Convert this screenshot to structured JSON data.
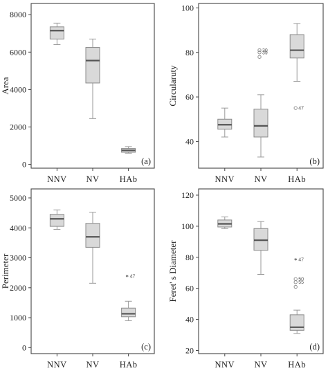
{
  "chart_data": [
    {
      "type": "box",
      "panel_label": "(a)",
      "ylabel": "Area",
      "categories": [
        "NNV",
        "NV",
        "HAb"
      ],
      "yticks": [
        "0",
        "2000",
        "4000",
        "6000",
        "8000"
      ],
      "ylim": [
        -200,
        8600
      ],
      "boxes": [
        {
          "min": 6400,
          "q1": 6700,
          "median": 7150,
          "q3": 7350,
          "max": 7550,
          "outliers": []
        },
        {
          "min": 2450,
          "q1": 4350,
          "median": 5550,
          "q3": 6250,
          "max": 6700,
          "outliers": []
        },
        {
          "min": 600,
          "q1": 650,
          "median": 750,
          "q3": 850,
          "max": 950,
          "outliers": []
        }
      ]
    },
    {
      "type": "box",
      "panel_label": "(b)",
      "ylabel": "Circularuty",
      "categories": [
        "NNV",
        "NV",
        "HAb"
      ],
      "yticks": [
        "40",
        "60",
        "80",
        "100"
      ],
      "ylim": [
        28,
        102
      ],
      "boxes": [
        {
          "min": 42,
          "q1": 45.5,
          "median": 47.5,
          "q3": 50,
          "max": 55,
          "outliers": []
        },
        {
          "min": 33,
          "q1": 42,
          "median": 47,
          "q3": 54.5,
          "max": 61,
          "outliers": [
            {
              "value": 81,
              "label": "30"
            },
            {
              "value": 80,
              "label": "39"
            },
            {
              "value": 78,
              "label": ""
            }
          ]
        },
        {
          "min": 67,
          "q1": 77.5,
          "median": 81,
          "q3": 88,
          "max": 93,
          "outliers": [
            {
              "value": 55,
              "label": "47"
            }
          ]
        }
      ]
    },
    {
      "type": "box",
      "panel_label": "(c)",
      "ylabel": "Perimeter",
      "categories": [
        "NNV",
        "NV",
        "HAb"
      ],
      "yticks": [
        "0",
        "1000",
        "2000",
        "3000",
        "4000",
        "5000"
      ],
      "ylim": [
        -200,
        5300
      ],
      "boxes": [
        {
          "min": 3950,
          "q1": 4050,
          "median": 4300,
          "q3": 4450,
          "max": 4600,
          "outliers": []
        },
        {
          "min": 2150,
          "q1": 3350,
          "median": 3700,
          "q3": 4150,
          "max": 4520,
          "outliers": []
        },
        {
          "min": 900,
          "q1": 1030,
          "median": 1130,
          "q3": 1320,
          "max": 1550,
          "outliers": [],
          "extremes": [
            {
              "value": 2350,
              "label": "47"
            }
          ]
        }
      ]
    },
    {
      "type": "box",
      "panel_label": "(d)",
      "ylabel": "Feret' s Diameter",
      "categories": [
        "NNV",
        "NV",
        "HAb"
      ],
      "yticks": [
        "20",
        "40",
        "60",
        "80",
        "100",
        "120"
      ],
      "ylim": [
        18,
        124
      ],
      "boxes": [
        {
          "min": 98.5,
          "q1": 99.5,
          "median": 101.5,
          "q3": 104,
          "max": 106,
          "outliers": []
        },
        {
          "min": 69,
          "q1": 84.5,
          "median": 91,
          "q3": 98.5,
          "max": 103,
          "outliers": []
        },
        {
          "min": 31,
          "q1": 33,
          "median": 35,
          "q3": 43,
          "max": 46,
          "outliers": [
            {
              "value": 66,
              "label": "50"
            },
            {
              "value": 64,
              "label": "55"
            },
            {
              "value": 61,
              "label": ""
            }
          ],
          "extremes": [
            {
              "value": 78,
              "label": "47"
            }
          ]
        }
      ]
    }
  ]
}
